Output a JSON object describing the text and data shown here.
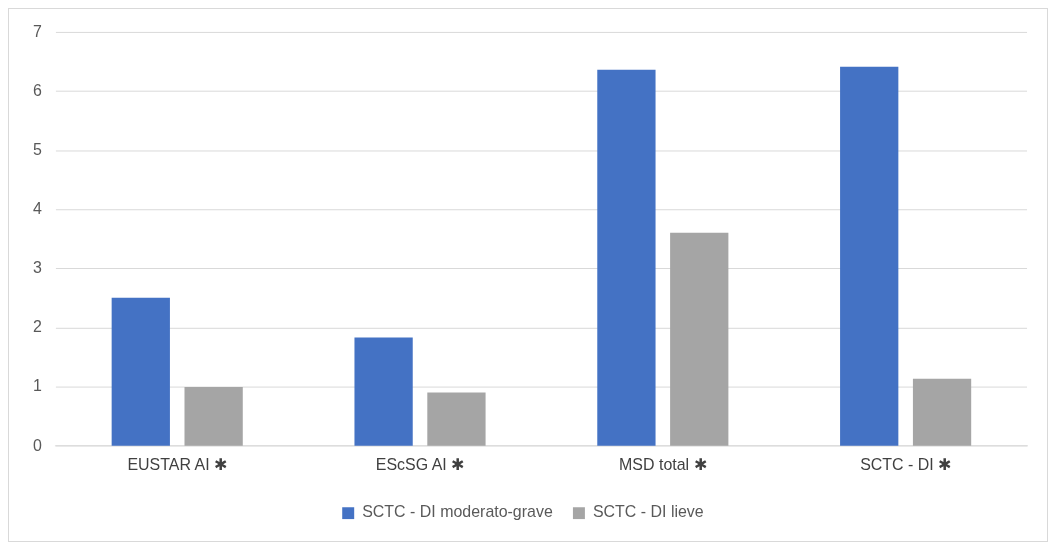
{
  "chart_data": {
    "type": "bar",
    "categories": [
      "EUSTAR AI ✱",
      "EScSG AI ✱",
      "MSD total ✱",
      "SCTC - DI ✱"
    ],
    "series": [
      {
        "name": "SCTC - DI moderato-grave",
        "color": "#4472c4",
        "values": [
          2.51,
          1.84,
          6.37,
          6.42
        ]
      },
      {
        "name": "SCTC - DI lieve",
        "color": "#a5a5a5",
        "values": [
          1.0,
          0.91,
          3.61,
          1.14
        ]
      }
    ],
    "ylim": [
      0,
      7
    ],
    "yticks": [
      0,
      1,
      2,
      3,
      4,
      5,
      6,
      7
    ],
    "grid": "y",
    "legend": "bottom"
  }
}
